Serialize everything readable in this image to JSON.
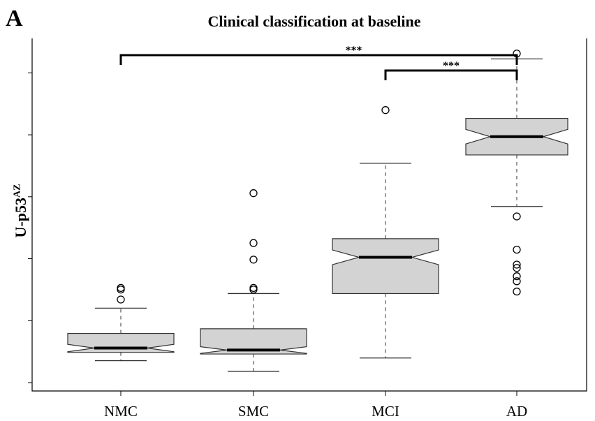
{
  "panel_label": "A",
  "chart_data": {
    "type": "boxplot",
    "notched": true,
    "title": "Clinical classification at baseline",
    "ylabel": "U-p53",
    "ylabel_superscript": "AZ",
    "xlabel": "",
    "ylim": [
      0,
      1
    ],
    "y_tick_labels_shown": false,
    "categories": [
      "NMC",
      "SMC",
      "MCI",
      "AD"
    ],
    "boxes": [
      {
        "category": "NMC",
        "whisker_low": 0.066,
        "q1": 0.091,
        "median": 0.104,
        "q3": 0.148,
        "whisker_high": 0.224,
        "notch_low": 0.093,
        "notch_high": 0.115,
        "outliers": [
          0.25,
          0.28,
          0.285
        ]
      },
      {
        "category": "SMC",
        "whisker_low": 0.034,
        "q1": 0.086,
        "median": 0.098,
        "q3": 0.162,
        "whisker_high": 0.268,
        "notch_low": 0.088,
        "notch_high": 0.108,
        "outliers": [
          0.28,
          0.285,
          0.37,
          0.42,
          0.57
        ]
      },
      {
        "category": "MCI",
        "whisker_low": 0.074,
        "q1": 0.268,
        "median": 0.377,
        "q3": 0.433,
        "whisker_high": 0.66,
        "notch_low": 0.355,
        "notch_high": 0.399,
        "outliers": [
          0.82
        ]
      },
      {
        "category": "AD",
        "whisker_low": 0.53,
        "q1": 0.685,
        "median": 0.74,
        "q3": 0.795,
        "whisker_high": 0.974,
        "notch_low": 0.718,
        "notch_high": 0.762,
        "outliers": [
          0.274,
          0.305,
          0.32,
          0.345,
          0.355,
          0.4,
          0.5,
          0.99
        ]
      }
    ],
    "significance": [
      {
        "from": "NMC",
        "to": "AD",
        "label": "***",
        "level": 0.955
      },
      {
        "from": "MCI",
        "to": "AD",
        "label": "***",
        "level": 0.905
      }
    ],
    "grid": false,
    "legend": "none",
    "colors": {
      "box_fill": "#d3d3d3",
      "stroke": "#000000",
      "whisker": "#555555"
    }
  }
}
